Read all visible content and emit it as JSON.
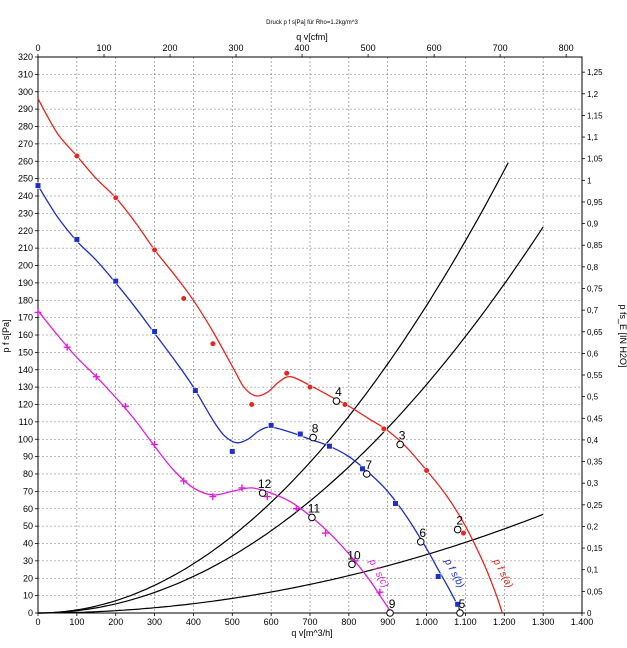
{
  "chart_data": {
    "type": "line",
    "title": "Druck p f s[Pa] für Rho=1.2kg/m^3",
    "xlabel_bottom": "q v[m^3/h]",
    "xlabel_top": "q v[cfm]",
    "ylabel_left": "p f s[Pa]",
    "ylabel_right": "p fs_E [IN H2O]",
    "xlim": [
      0,
      1400
    ],
    "ylim": [
      0,
      320
    ],
    "top_xlim": [
      0,
      824
    ],
    "right_ylim": [
      0,
      1.285
    ],
    "grid": true,
    "x_ticks": [
      "0",
      "100",
      "200",
      "300",
      "400",
      "500",
      "600",
      "700",
      "800",
      "900",
      "1.000",
      "1.100",
      "1.200",
      "1.300",
      "1.400"
    ],
    "top_x_ticks": [
      "0",
      "100",
      "200",
      "300",
      "400",
      "500",
      "600",
      "700",
      "800"
    ],
    "y_ticks": [
      "0",
      "10",
      "20",
      "30",
      "40",
      "50",
      "60",
      "70",
      "80",
      "90",
      "100",
      "110",
      "120",
      "130",
      "140",
      "150",
      "160",
      "170",
      "180",
      "190",
      "200",
      "210",
      "220",
      "230",
      "240",
      "250",
      "260",
      "270",
      "280",
      "290",
      "300",
      "310",
      "320"
    ],
    "right_y_ticks": [
      "0",
      "0,05",
      "0,1",
      "0,15",
      "0,2",
      "0,25",
      "0,3",
      "0,35",
      "0,4",
      "0,45",
      "0,5",
      "0,55",
      "0,6",
      "0,65",
      "0,7",
      "0,75",
      "0,8",
      "0,85",
      "0,9",
      "0,95",
      "1",
      "1,05",
      "1,1",
      "1,15",
      "1,2",
      "1,25"
    ],
    "series": [
      {
        "name": "p f s(a)",
        "color": "#e8251f",
        "marker": "circle",
        "curve": [
          [
            0,
            296
          ],
          [
            50,
            276
          ],
          [
            100,
            263
          ],
          [
            150,
            250
          ],
          [
            200,
            239
          ],
          [
            250,
            225
          ],
          [
            300,
            209
          ],
          [
            350,
            195
          ],
          [
            400,
            180
          ],
          [
            450,
            162
          ],
          [
            500,
            142
          ],
          [
            530,
            130
          ],
          [
            560,
            125
          ],
          [
            590,
            127
          ],
          [
            620,
            133
          ],
          [
            650,
            136
          ],
          [
            700,
            131
          ],
          [
            750,
            125
          ],
          [
            800,
            119
          ],
          [
            850,
            112
          ],
          [
            900,
            105
          ],
          [
            950,
            95
          ],
          [
            1000,
            82
          ],
          [
            1050,
            68
          ],
          [
            1100,
            50
          ],
          [
            1150,
            27
          ],
          [
            1180,
            10
          ],
          [
            1195,
            0
          ]
        ],
        "markers": [
          [
            100,
            263
          ],
          [
            200,
            239
          ],
          [
            300,
            209
          ],
          [
            375,
            181
          ],
          [
            450,
            155
          ],
          [
            550,
            120
          ],
          [
            640,
            138
          ],
          [
            700,
            130
          ],
          [
            790,
            120
          ],
          [
            890,
            106
          ],
          [
            1000,
            82
          ],
          [
            1095,
            46
          ]
        ]
      },
      {
        "name": "p f s(b)",
        "color": "#1c2fc8",
        "marker": "square",
        "curve": [
          [
            0,
            246
          ],
          [
            50,
            228
          ],
          [
            100,
            214
          ],
          [
            150,
            203
          ],
          [
            200,
            190
          ],
          [
            250,
            176
          ],
          [
            300,
            161
          ],
          [
            350,
            146
          ],
          [
            400,
            130
          ],
          [
            450,
            111
          ],
          [
            480,
            102
          ],
          [
            510,
            98
          ],
          [
            540,
            100
          ],
          [
            570,
            105
          ],
          [
            600,
            107
          ],
          [
            650,
            104
          ],
          [
            700,
            100
          ],
          [
            750,
            96
          ],
          [
            800,
            90
          ],
          [
            850,
            81
          ],
          [
            900,
            70
          ],
          [
            950,
            55
          ],
          [
            1000,
            37
          ],
          [
            1030,
            25
          ],
          [
            1060,
            13
          ],
          [
            1090,
            0
          ]
        ],
        "markers": [
          [
            0,
            246
          ],
          [
            100,
            215
          ],
          [
            200,
            191
          ],
          [
            300,
            162
          ],
          [
            405,
            128
          ],
          [
            500,
            93
          ],
          [
            600,
            108
          ],
          [
            675,
            103
          ],
          [
            750,
            96
          ],
          [
            835,
            83
          ],
          [
            920,
            63
          ],
          [
            1030,
            21
          ],
          [
            1080,
            5
          ]
        ]
      },
      {
        "name": "p f s(c)",
        "color": "#e020d8",
        "marker": "plus",
        "curve": [
          [
            0,
            174
          ],
          [
            50,
            160
          ],
          [
            100,
            147
          ],
          [
            150,
            136
          ],
          [
            200,
            124
          ],
          [
            250,
            111
          ],
          [
            300,
            96
          ],
          [
            350,
            82
          ],
          [
            400,
            72
          ],
          [
            450,
            68
          ],
          [
            500,
            70
          ],
          [
            550,
            72
          ],
          [
            600,
            69
          ],
          [
            650,
            64
          ],
          [
            700,
            56
          ],
          [
            750,
            46
          ],
          [
            800,
            34
          ],
          [
            850,
            20
          ],
          [
            880,
            10
          ],
          [
            910,
            0
          ]
        ],
        "markers": [
          [
            0,
            173
          ],
          [
            75,
            153
          ],
          [
            150,
            136
          ],
          [
            225,
            119
          ],
          [
            300,
            97
          ],
          [
            375,
            76
          ],
          [
            450,
            67
          ],
          [
            525,
            72
          ],
          [
            590,
            67
          ],
          [
            665,
            60
          ],
          [
            740,
            46
          ],
          [
            815,
            30
          ],
          [
            880,
            12
          ]
        ]
      }
    ],
    "system_curves": [
      {
        "k": 0.000177,
        "xmax": 1215
      },
      {
        "k": 0.0001315,
        "xmax": 1300
      },
      {
        "k": 3.36e-05,
        "xmax": 1300
      }
    ],
    "operating_points": [
      {
        "label": "2",
        "x": 1080,
        "y": 48
      },
      {
        "label": "3",
        "x": 932,
        "y": 97
      },
      {
        "label": "4",
        "x": 768,
        "y": 122
      },
      {
        "label": "5",
        "x": 1086,
        "y": 0
      },
      {
        "label": "6",
        "x": 985,
        "y": 41
      },
      {
        "label": "7",
        "x": 846,
        "y": 80
      },
      {
        "label": "8",
        "x": 708,
        "y": 101
      },
      {
        "label": "9",
        "x": 906,
        "y": 0
      },
      {
        "label": "10",
        "x": 808,
        "y": 28
      },
      {
        "label": "11",
        "x": 705,
        "y": 55
      },
      {
        "label": "12",
        "x": 578,
        "y": 69
      }
    ],
    "curve_end_labels": [
      {
        "text": "p f s(a)",
        "x": 1190,
        "y": 22,
        "color": "#e8251f"
      },
      {
        "text": "p f s(b)",
        "x": 1065,
        "y": 22,
        "color": "#1c2fc8"
      },
      {
        "text": "p f s(c)",
        "x": 870,
        "y": 22,
        "color": "#e020d8"
      }
    ]
  }
}
